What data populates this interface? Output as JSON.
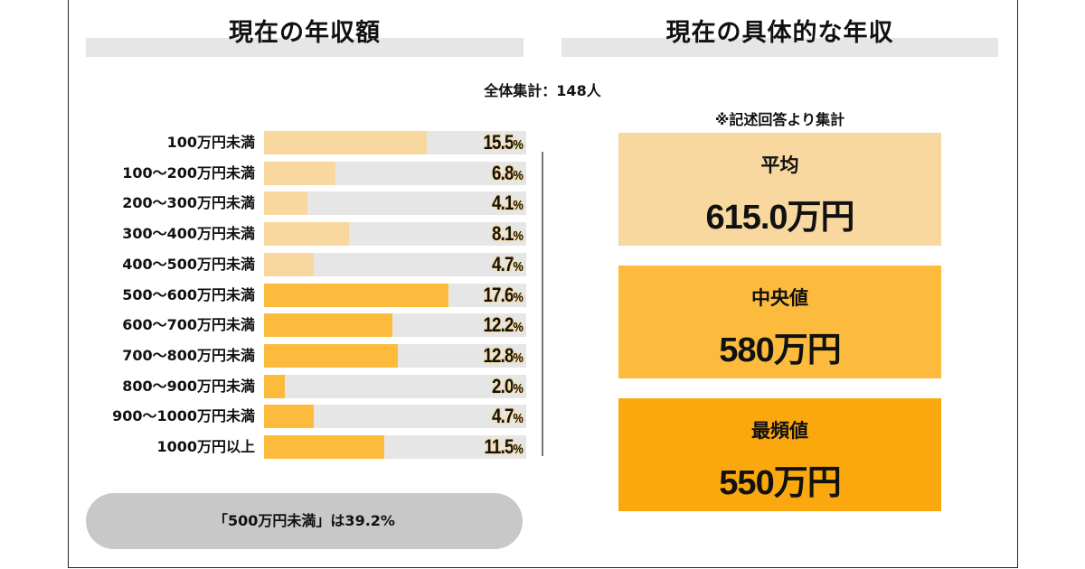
{
  "left_title": "現在の年収額",
  "right_title": "現在の具体的な年収",
  "total_label": "全体集計：148人",
  "note": "※記述回答より集計",
  "summary": "「500万円未満」は39.2%",
  "colors": {
    "light": "#F8D89E",
    "mid": "#FDBB3D",
    "dark": "#FBA80F",
    "track": "#E6E6E6"
  },
  "chart_data": {
    "type": "bar",
    "orientation": "horizontal",
    "title": "現在の年収額",
    "categories": [
      "100万円未満",
      "100～200万円未満",
      "200～300万円未満",
      "300～400万円未満",
      "400～500万円未満",
      "500～600万円未満",
      "600～700万円未満",
      "700～800万円未満",
      "800～900万円未満",
      "900～1000万円未満",
      "1000万円以上"
    ],
    "values": [
      15.5,
      6.8,
      4.1,
      8.1,
      4.7,
      17.6,
      12.2,
      12.8,
      2.0,
      4.7,
      11.5
    ],
    "labels": [
      "15.5",
      "6.8",
      "4.1",
      "8.1",
      "4.7",
      "17.6",
      "12.2",
      "12.8",
      "2.0",
      "4.7",
      "11.5"
    ],
    "unit": "%",
    "xlim": [
      0,
      25
    ]
  },
  "stats": [
    {
      "label": "平均",
      "value": "615.0万円"
    },
    {
      "label": "中央値",
      "value": "580万円"
    },
    {
      "label": "最頻値",
      "value": "550万円"
    }
  ]
}
